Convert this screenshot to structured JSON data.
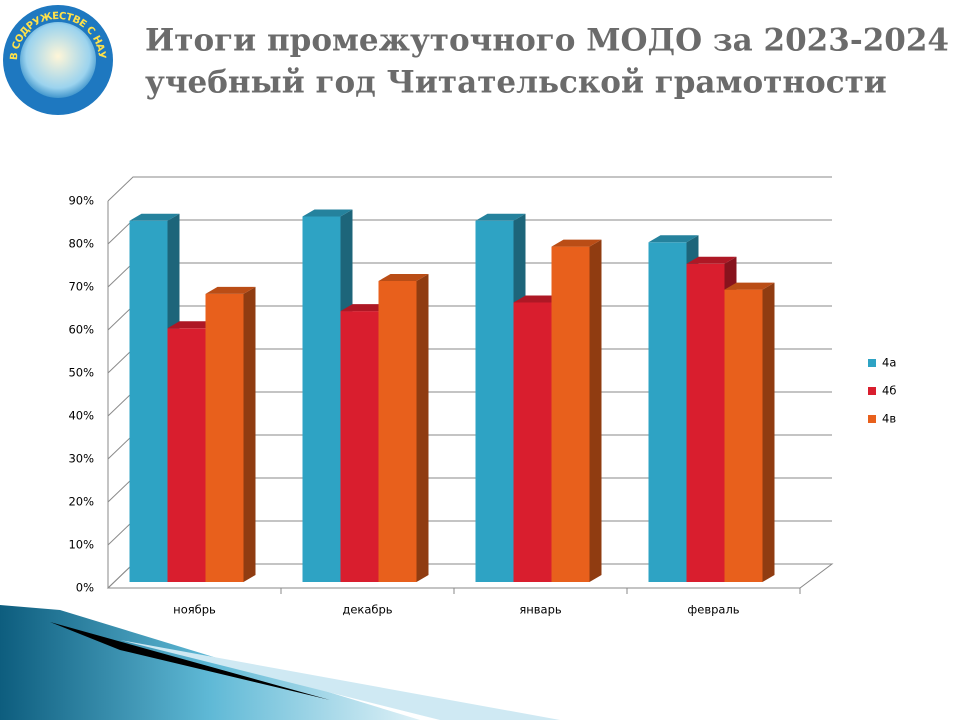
{
  "chart_data": {
    "type": "bar3d",
    "title": [
      "Итоги промежуточного  МОДО за 2023-2024",
      "учебный год Читательской грамотности"
    ],
    "logo_text": "В СОДРУЖЕСТВЕ С НАУКОЙ",
    "categories": [
      "ноябрь",
      "декабрь",
      "январь",
      "февраль"
    ],
    "series": [
      {
        "name": "4а",
        "color": "#2ea3c4",
        "values": [
          84,
          85,
          84,
          79
        ]
      },
      {
        "name": "4б",
        "color": "#d91e2e",
        "values": [
          59,
          63,
          65,
          74
        ]
      },
      {
        "name": "4в",
        "color": "#e8601c",
        "values": [
          67,
          70,
          78,
          68
        ]
      }
    ],
    "ylim": [
      0,
      90
    ],
    "yticks": [
      {
        "value": 0,
        "label": "0%"
      },
      {
        "value": 10,
        "label": "10%"
      },
      {
        "value": 20,
        "label": "20%"
      },
      {
        "value": 30,
        "label": "30%"
      },
      {
        "value": 40,
        "label": "40%"
      },
      {
        "value": 50,
        "label": "50%"
      },
      {
        "value": 60,
        "label": "60%"
      },
      {
        "value": 70,
        "label": "70%"
      },
      {
        "value": 80,
        "label": "80%"
      },
      {
        "value": 90,
        "label": "90%"
      }
    ],
    "grid": true,
    "legend": "right"
  }
}
